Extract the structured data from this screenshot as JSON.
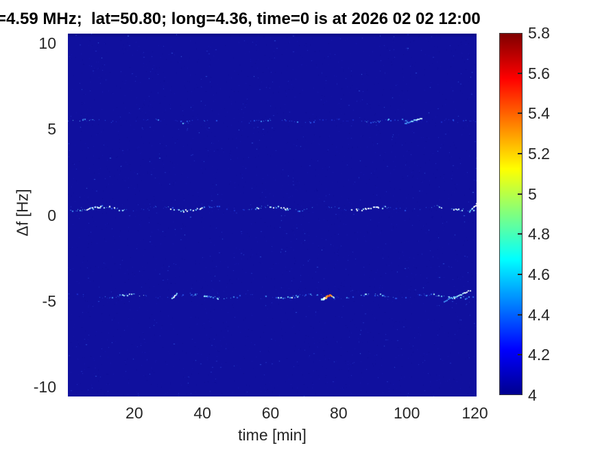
{
  "title": "=4.59 MHz;  lat=50.80; long=4.36, time=0 is at 2026 02 02 12:00",
  "axes": {
    "xlabel": "time [min]",
    "ylabel": "Δf [Hz]",
    "x_ticks": [
      20,
      40,
      60,
      80,
      100,
      120
    ],
    "y_ticks": [
      10,
      5,
      0,
      -5,
      -10
    ],
    "x_range": [
      0.5,
      120.5
    ],
    "y_range": [
      -10.56,
      10.56
    ]
  },
  "colorbar": {
    "min": 4,
    "max": 5.8,
    "tick_labels": [
      5.8,
      5.6,
      5.4,
      5.2,
      5,
      4.8,
      4.6,
      4.4,
      4.2,
      4
    ],
    "colormap": "jet",
    "gradient_stops": [
      [
        0.0,
        "#7f0000"
      ],
      [
        0.125,
        "#ff0000"
      ],
      [
        0.375,
        "#ffff00"
      ],
      [
        0.625,
        "#00ffff"
      ],
      [
        0.875,
        "#0000ff"
      ],
      [
        1.0,
        "#00008f"
      ]
    ]
  },
  "chart_data": {
    "type": "heatmap",
    "title": "=4.59 MHz;  lat=50.80; long=4.36, time=0 is at 2026 02 02 12:00",
    "xlabel": "time [min]",
    "ylabel": "Δf [Hz]",
    "x_tick_values": [
      20,
      40,
      60,
      80,
      100,
      120
    ],
    "y_tick_values": [
      10,
      5,
      0,
      -5,
      -10
    ],
    "x_range_min": [
      0,
      120
    ],
    "y_range_hz": [
      -10.5,
      10.5
    ],
    "color_scale": {
      "min": 4,
      "max": 5.8,
      "colormap": "jet",
      "tick_step": 0.2
    },
    "background_value": 4.05,
    "grid": false,
    "legend": false,
    "series": [
      {
        "name": "upper-doppler-trace",
        "df_hz": 5.5,
        "t_range_min": [
          3,
          120
        ],
        "typical_value": 4.4,
        "peak_value": 4.7,
        "character": "faint speckled horizontal trace"
      },
      {
        "name": "center-doppler-trace",
        "df_hz": 0.4,
        "t_range_min": [
          1,
          120
        ],
        "typical_value": 4.6,
        "peak_value": 5.0,
        "character": "bright wavy speckled trace with white clusters"
      },
      {
        "name": "lower-doppler-trace",
        "df_hz": -4.7,
        "t_range_min": [
          2,
          120
        ],
        "typical_value": 4.5,
        "peak_value": 5.5,
        "character": "speckled trace with orange flare near t=77 min and rising cyan streak near t=115 min"
      }
    ]
  },
  "render": {
    "seed": 42,
    "base_color": "#10109e",
    "mottle_colors": [
      "#0b0b94",
      "#12129f",
      "#1717ab",
      "#0e0e9a"
    ],
    "speckle_faint": {
      "count": 430,
      "color": "#1f2fbe"
    },
    "speckle_mid": {
      "count": 95,
      "color": "#2b4cd8"
    },
    "speckle_bright": {
      "count": 26,
      "color": "#3a6ae8"
    },
    "dot_ramp": [
      "#1b2cc8",
      "#2851e6",
      "#3f8cf2",
      "#63c8fa",
      "#a5ecff",
      "#f2ffff"
    ],
    "traces": [
      {
        "df": 5.5,
        "density": 0.42,
        "amp": 1.6,
        "e0": 0.3,
        "e1": 0.7,
        "per": 9.5,
        "ph": 1.2,
        "wob": 2.9,
        "maxI": 0.72
      },
      {
        "df": 0.4,
        "density": 0.62,
        "amp": 2.6,
        "e0": 0.35,
        "e1": 0.75,
        "per": 8.2,
        "ph": 0.3,
        "wob": 2.6,
        "maxI": 1.0
      },
      {
        "df": -4.7,
        "density": 0.52,
        "amp": 2.4,
        "e0": 0.33,
        "e1": 0.72,
        "per": 7.4,
        "ph": 2.1,
        "wob": 2.8,
        "maxI": 0.88
      }
    ],
    "streaks": [
      {
        "df": -4.7,
        "t0": 74.8,
        "t1": 77.2,
        "dy0": 4.5,
        "dy1": -2.5,
        "n": 9,
        "size": 3,
        "palette": [
          "#a5ecff",
          "#ffffff",
          "#ffd878",
          "#ff9a30",
          "#f25c14"
        ]
      },
      {
        "df": -4.7,
        "t0": 77.2,
        "t1": 78.5,
        "dy0": -2.5,
        "dy1": 1.5,
        "n": 5,
        "size": 2,
        "palette": [
          "#ff8824",
          "#ffc860",
          "#9fe0ff"
        ]
      },
      {
        "df": -4.7,
        "t0": 31.0,
        "t1": 32.3,
        "dy0": 3.0,
        "dy1": -3.5,
        "n": 6,
        "size": 2,
        "palette": [
          "#a5ecff",
          "#ffffff",
          "#ffffff",
          "#7fd8ff"
        ]
      },
      {
        "df": -4.7,
        "t0": 110.8,
        "t1": 118.4,
        "dy0": 7.0,
        "dy1": -8.0,
        "n": 19,
        "size": 2,
        "palette": [
          "#3f8cf2",
          "#63c8fa",
          "#a5ecff",
          "#e8fbff"
        ]
      },
      {
        "df": 0.4,
        "t0": 118.2,
        "t1": 120.3,
        "dy0": 4.0,
        "dy1": -7.0,
        "n": 8,
        "size": 2,
        "palette": [
          "#63c8fa",
          "#d8f6ff",
          "#ffffff"
        ]
      },
      {
        "df": 5.5,
        "t0": 99.3,
        "t1": 104.2,
        "dy0": 3.0,
        "dy1": -4.0,
        "n": 14,
        "size": 2,
        "palette": [
          "#3f8cf2",
          "#7fd8ff",
          "#c8f2ff"
        ]
      }
    ]
  }
}
